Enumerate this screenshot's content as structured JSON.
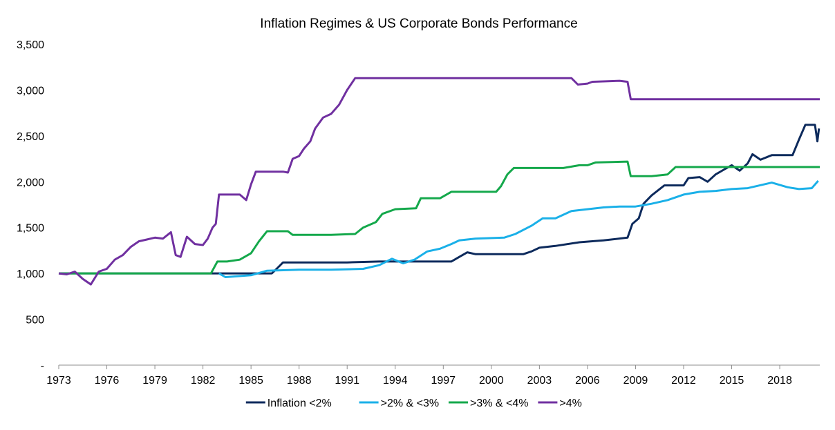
{
  "chart_data": {
    "type": "line",
    "title": "Inflation Regimes & US Corporate Bonds Performance",
    "xlabel": "",
    "ylabel": "",
    "xlim": [
      1973.0,
      2020.5
    ],
    "ylim": [
      0,
      3500
    ],
    "y_ticks": [
      {
        "value": 0,
        "label": "-"
      },
      {
        "value": 500,
        "label": "500"
      },
      {
        "value": 1000,
        "label": "1,000"
      },
      {
        "value": 1500,
        "label": "1,500"
      },
      {
        "value": 2000,
        "label": "2,000"
      },
      {
        "value": 2500,
        "label": "2,500"
      },
      {
        "value": 3000,
        "label": "3,000"
      },
      {
        "value": 3500,
        "label": "3,500"
      }
    ],
    "x_ticks": [
      "1973",
      "1976",
      "1979",
      "1982",
      "1985",
      "1988",
      "1991",
      "1994",
      "1997",
      "2000",
      "2003",
      "2006",
      "2009",
      "2012",
      "2015",
      "2018"
    ],
    "grid": false,
    "legend_position": "bottom",
    "series": [
      {
        "name": "Inflation <2%",
        "color": "#0d2a5c",
        "points": [
          [
            1973.0,
            1000
          ],
          [
            1983.0,
            1000
          ],
          [
            1986.3,
            1000
          ],
          [
            1986.6,
            1050
          ],
          [
            1987.0,
            1120
          ],
          [
            1991.0,
            1120
          ],
          [
            1993.0,
            1130
          ],
          [
            1995.0,
            1130
          ],
          [
            1997.5,
            1130
          ],
          [
            1998.0,
            1180
          ],
          [
            1998.5,
            1230
          ],
          [
            1999.0,
            1210
          ],
          [
            2000.5,
            1210
          ],
          [
            2002.0,
            1210
          ],
          [
            2002.5,
            1240
          ],
          [
            2003.0,
            1280
          ],
          [
            2004.0,
            1300
          ],
          [
            2005.5,
            1340
          ],
          [
            2007.0,
            1360
          ],
          [
            2008.5,
            1390
          ],
          [
            2008.8,
            1540
          ],
          [
            2009.2,
            1600
          ],
          [
            2009.5,
            1760
          ],
          [
            2010.0,
            1850
          ],
          [
            2010.8,
            1960
          ],
          [
            2012.0,
            1960
          ],
          [
            2012.3,
            2040
          ],
          [
            2013.0,
            2050
          ],
          [
            2013.5,
            2000
          ],
          [
            2014.0,
            2080
          ],
          [
            2014.5,
            2130
          ],
          [
            2015.0,
            2180
          ],
          [
            2015.5,
            2120
          ],
          [
            2016.0,
            2200
          ],
          [
            2016.3,
            2300
          ],
          [
            2016.8,
            2240
          ],
          [
            2017.5,
            2290
          ],
          [
            2018.8,
            2290
          ],
          [
            2019.2,
            2460
          ],
          [
            2019.6,
            2620
          ],
          [
            2020.2,
            2620
          ],
          [
            2020.35,
            2440
          ],
          [
            2020.45,
            2580
          ]
        ]
      },
      {
        "name": ">2% & <3%",
        "color": "#1ab0e8",
        "points": [
          [
            1983.0,
            1000
          ],
          [
            1983.4,
            960
          ],
          [
            1985.0,
            980
          ],
          [
            1986.0,
            1030
          ],
          [
            1988.0,
            1040
          ],
          [
            1990.0,
            1040
          ],
          [
            1992.0,
            1050
          ],
          [
            1993.0,
            1090
          ],
          [
            1993.8,
            1160
          ],
          [
            1994.5,
            1110
          ],
          [
            1995.2,
            1150
          ],
          [
            1996.0,
            1240
          ],
          [
            1996.8,
            1270
          ],
          [
            1997.5,
            1320
          ],
          [
            1998.0,
            1360
          ],
          [
            1999.0,
            1380
          ],
          [
            2000.8,
            1390
          ],
          [
            2001.5,
            1430
          ],
          [
            2002.5,
            1520
          ],
          [
            2003.2,
            1600
          ],
          [
            2004.0,
            1600
          ],
          [
            2005.0,
            1680
          ],
          [
            2006.0,
            1700
          ],
          [
            2007.0,
            1720
          ],
          [
            2008.0,
            1730
          ],
          [
            2009.0,
            1730
          ],
          [
            2010.0,
            1760
          ],
          [
            2011.0,
            1800
          ],
          [
            2012.0,
            1860
          ],
          [
            2013.0,
            1890
          ],
          [
            2014.0,
            1900
          ],
          [
            2015.0,
            1920
          ],
          [
            2016.0,
            1930
          ],
          [
            2017.5,
            1990
          ],
          [
            2018.5,
            1940
          ],
          [
            2019.2,
            1920
          ],
          [
            2020.0,
            1930
          ],
          [
            2020.4,
            2010
          ]
        ]
      },
      {
        "name": ">3% & <4%",
        "color": "#14a84b",
        "points": [
          [
            1973.0,
            1000
          ],
          [
            1982.5,
            1000
          ],
          [
            1982.9,
            1130
          ],
          [
            1983.5,
            1130
          ],
          [
            1984.3,
            1150
          ],
          [
            1985.0,
            1220
          ],
          [
            1985.5,
            1350
          ],
          [
            1986.0,
            1460
          ],
          [
            1987.3,
            1460
          ],
          [
            1987.6,
            1420
          ],
          [
            1988.2,
            1420
          ],
          [
            1990.0,
            1420
          ],
          [
            1991.5,
            1430
          ],
          [
            1992.0,
            1500
          ],
          [
            1992.8,
            1560
          ],
          [
            1993.2,
            1650
          ],
          [
            1994.0,
            1700
          ],
          [
            1995.3,
            1710
          ],
          [
            1995.6,
            1820
          ],
          [
            1996.8,
            1820
          ],
          [
            1997.5,
            1890
          ],
          [
            1999.0,
            1890
          ],
          [
            2000.3,
            1890
          ],
          [
            2000.6,
            1950
          ],
          [
            2001.0,
            2080
          ],
          [
            2001.4,
            2150
          ],
          [
            2003.0,
            2150
          ],
          [
            2004.5,
            2150
          ],
          [
            2005.5,
            2180
          ],
          [
            2006.0,
            2180
          ],
          [
            2006.5,
            2210
          ],
          [
            2008.5,
            2220
          ],
          [
            2008.7,
            2060
          ],
          [
            2010.0,
            2060
          ],
          [
            2011.0,
            2080
          ],
          [
            2011.5,
            2160
          ],
          [
            2015.0,
            2160
          ],
          [
            2020.5,
            2160
          ]
        ]
      },
      {
        "name": ">4%",
        "color": "#7030a0",
        "points": [
          [
            1973.0,
            1000
          ],
          [
            1973.5,
            990
          ],
          [
            1974.0,
            1020
          ],
          [
            1974.5,
            940
          ],
          [
            1975.0,
            880
          ],
          [
            1975.5,
            1020
          ],
          [
            1976.0,
            1050
          ],
          [
            1976.5,
            1150
          ],
          [
            1977.0,
            1200
          ],
          [
            1977.5,
            1290
          ],
          [
            1978.0,
            1350
          ],
          [
            1978.5,
            1370
          ],
          [
            1979.0,
            1390
          ],
          [
            1979.5,
            1380
          ],
          [
            1980.0,
            1450
          ],
          [
            1980.3,
            1200
          ],
          [
            1980.6,
            1180
          ],
          [
            1981.0,
            1400
          ],
          [
            1981.5,
            1320
          ],
          [
            1982.0,
            1310
          ],
          [
            1982.3,
            1380
          ],
          [
            1982.6,
            1500
          ],
          [
            1982.8,
            1540
          ],
          [
            1983.0,
            1860
          ],
          [
            1984.3,
            1860
          ],
          [
            1984.7,
            1800
          ],
          [
            1985.0,
            1970
          ],
          [
            1985.3,
            2110
          ],
          [
            1987.0,
            2110
          ],
          [
            1987.3,
            2100
          ],
          [
            1987.6,
            2250
          ],
          [
            1988.0,
            2280
          ],
          [
            1988.3,
            2360
          ],
          [
            1988.7,
            2440
          ],
          [
            1989.0,
            2580
          ],
          [
            1989.5,
            2700
          ],
          [
            1990.0,
            2740
          ],
          [
            1990.5,
            2840
          ],
          [
            1991.0,
            3000
          ],
          [
            1991.5,
            3130
          ],
          [
            1993.0,
            3130
          ],
          [
            2005.0,
            3130
          ],
          [
            2005.4,
            3060
          ],
          [
            2006.0,
            3070
          ],
          [
            2006.3,
            3090
          ],
          [
            2008.0,
            3100
          ],
          [
            2008.5,
            3090
          ],
          [
            2008.7,
            2900
          ],
          [
            2020.5,
            2900
          ]
        ]
      }
    ]
  }
}
